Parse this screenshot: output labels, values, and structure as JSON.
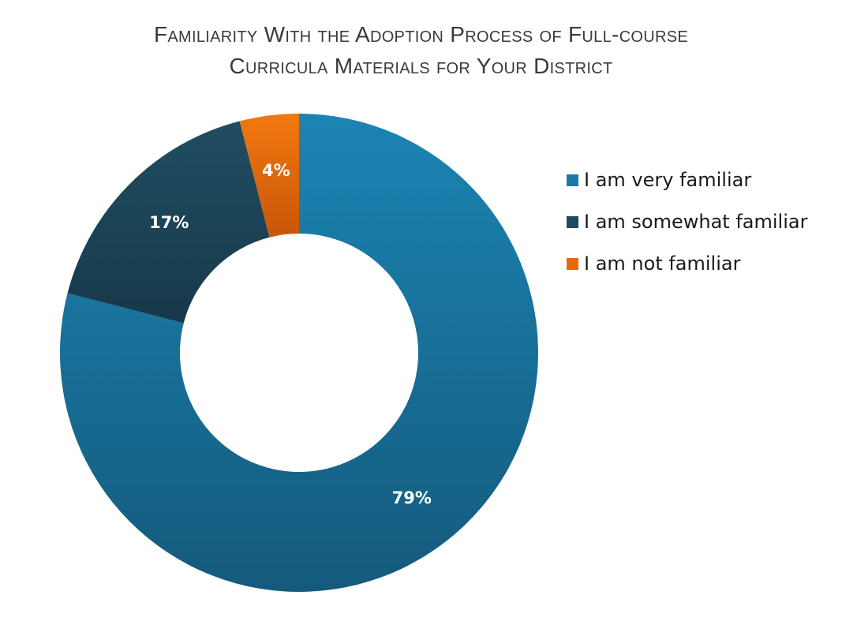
{
  "title": {
    "line1": "Familiarity With the Adoption Process of Full-course",
    "line2": "Curricula Materials for Your District"
  },
  "chart_data": {
    "type": "pie",
    "variant": "donut",
    "title": "Familiarity With the Adoption Process of Full-course Curricula Materials for Your District",
    "categories": [
      "I am very familiar",
      "I am somewhat familiar",
      "I am not familiar"
    ],
    "values": [
      79,
      17,
      4
    ],
    "data_labels": [
      "79%",
      "17%",
      "4%"
    ],
    "colors": [
      "#1b7aa8",
      "#1f4a5e",
      "#e8670f"
    ],
    "legend_position": "right"
  }
}
